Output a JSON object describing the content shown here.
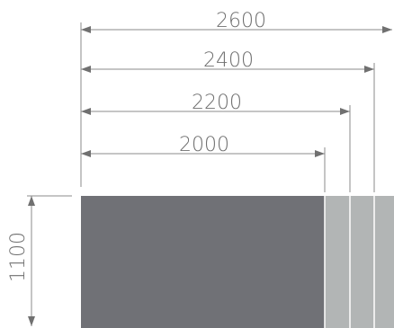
{
  "dimensions": {
    "widths": [
      {
        "label": "2600"
      },
      {
        "label": "2400"
      },
      {
        "label": "2200"
      },
      {
        "label": "2000"
      }
    ],
    "height": {
      "label": "1100"
    }
  },
  "colors": {
    "dark_panel": "#707176",
    "light_panel": "#b2b5b5",
    "divider": "#ffffff",
    "dimension_line": "#8b8b8b",
    "text": "#6f6f6f"
  }
}
